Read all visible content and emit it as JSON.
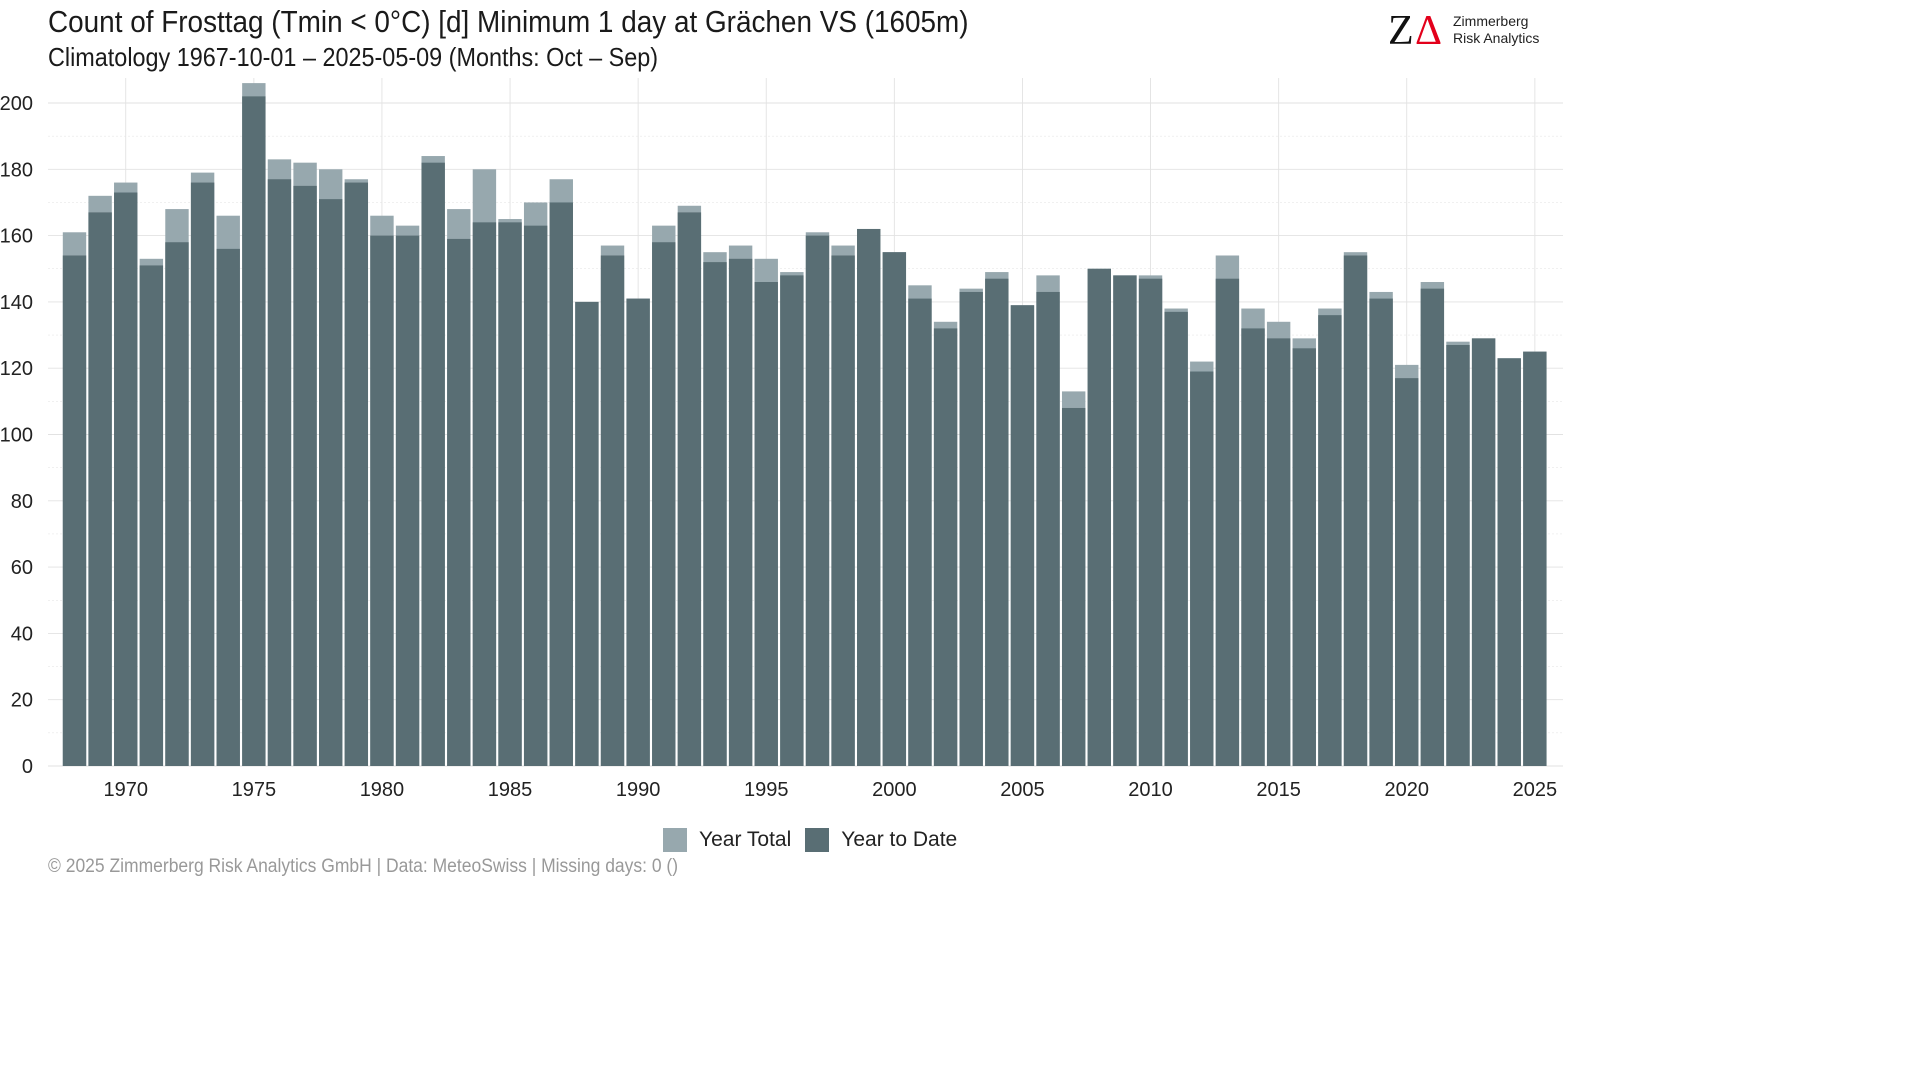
{
  "header": {
    "title": "Count of Frosttag (Tmin < 0°C) [d] Minimum 1 day at Grächen  VS (1605m)",
    "subtitle": "Climatology 1967-10-01 – 2025-05-09 (Months: Oct – Sep)"
  },
  "logo": {
    "glyph_z": "Z",
    "glyph_delta": "Δ",
    "line1": "Zimmerberg",
    "line2": "Risk Analytics"
  },
  "colors": {
    "year_total": "#97a8ae",
    "year_to_date": "#596e74",
    "logo_delta": "#e3001b",
    "grid": "#e2e2e2"
  },
  "legend": {
    "year_total": "Year Total",
    "year_to_date": "Year to Date"
  },
  "footer": "©  2025 Zimmerberg Risk Analytics GmbH | Data: MeteoSwiss | Missing days: 0 ()",
  "chart_data": {
    "type": "bar",
    "bar_mode": "overlay",
    "xlim": [
      1967,
      2025
    ],
    "ylim": [
      0,
      200
    ],
    "y_ticks": [
      0,
      20,
      40,
      60,
      80,
      100,
      120,
      140,
      160,
      180,
      200
    ],
    "x_ticks": [
      1970,
      1975,
      1980,
      1985,
      1990,
      1995,
      2000,
      2005,
      2010,
      2015,
      2020,
      2025
    ],
    "grid": true,
    "legend_position": "bottom",
    "x": [
      1968,
      1969,
      1970,
      1971,
      1972,
      1973,
      1974,
      1975,
      1976,
      1977,
      1978,
      1979,
      1980,
      1981,
      1982,
      1983,
      1984,
      1985,
      1986,
      1987,
      1988,
      1989,
      1990,
      1991,
      1992,
      1993,
      1994,
      1995,
      1996,
      1997,
      1998,
      1999,
      2000,
      2001,
      2002,
      2003,
      2004,
      2005,
      2006,
      2007,
      2008,
      2009,
      2010,
      2011,
      2012,
      2013,
      2014,
      2015,
      2016,
      2017,
      2018,
      2019,
      2020,
      2021,
      2022,
      2023,
      2024,
      2025
    ],
    "series": [
      {
        "name": "Year Total",
        "values": [
          161,
          172,
          176,
          153,
          168,
          179,
          166,
          206,
          183,
          182,
          180,
          177,
          166,
          163,
          184,
          168,
          180,
          165,
          170,
          177,
          140,
          157,
          141,
          163,
          169,
          155,
          157,
          153,
          149,
          161,
          157,
          162,
          155,
          145,
          134,
          144,
          149,
          139,
          148,
          113,
          150,
          148,
          148,
          138,
          122,
          154,
          138,
          134,
          129,
          138,
          155,
          143,
          121,
          146,
          128,
          129,
          123,
          125
        ]
      },
      {
        "name": "Year to Date",
        "values": [
          154,
          167,
          173,
          151,
          158,
          176,
          156,
          202,
          177,
          175,
          171,
          176,
          160,
          160,
          182,
          159,
          164,
          164,
          163,
          170,
          140,
          154,
          141,
          158,
          167,
          152,
          153,
          146,
          148,
          160,
          154,
          162,
          155,
          141,
          132,
          143,
          147,
          139,
          143,
          108,
          150,
          148,
          147,
          137,
          119,
          147,
          132,
          129,
          126,
          136,
          154,
          141,
          117,
          144,
          127,
          129,
          123,
          125
        ]
      }
    ]
  }
}
